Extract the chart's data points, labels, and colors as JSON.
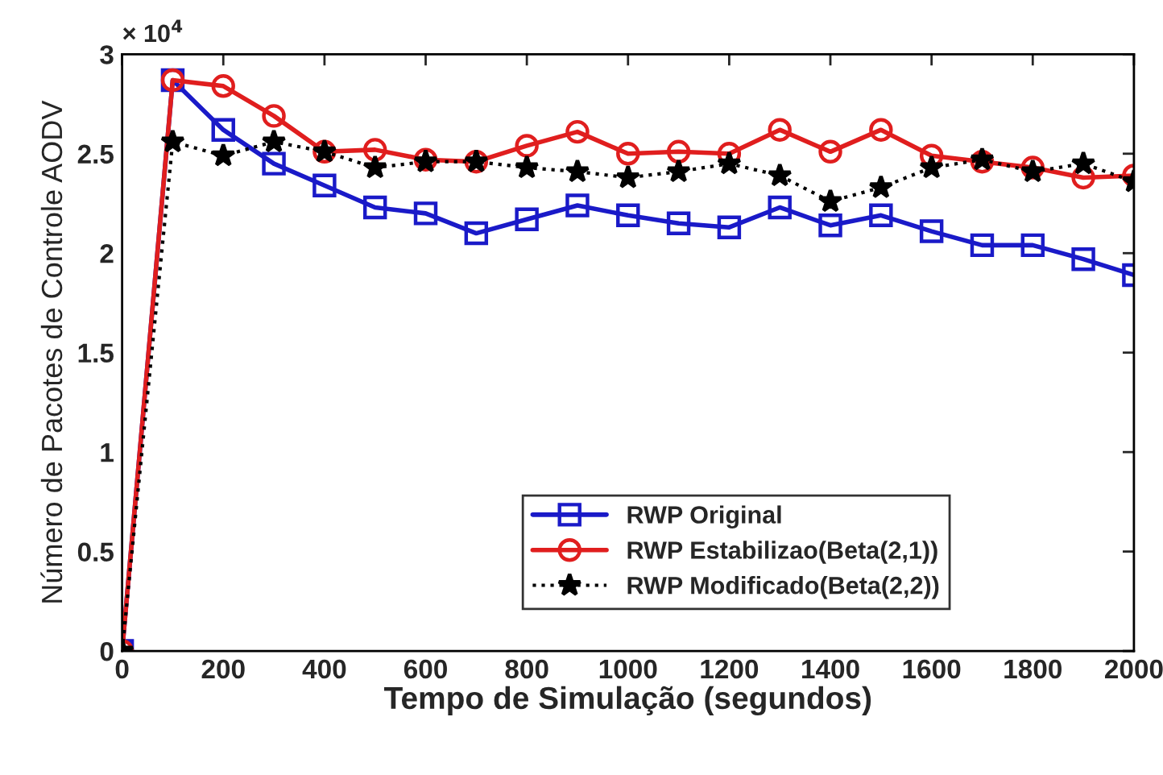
{
  "chart_data": {
    "type": "line",
    "xlabel": "Tempo de Simulação (segundos)",
    "ylabel": "Número de Pacotes de Controle AODV",
    "annotations": [
      "× 10$^{4}$"
    ],
    "x": [
      0,
      100,
      200,
      300,
      400,
      500,
      600,
      700,
      800,
      900,
      1000,
      1100,
      1200,
      1300,
      1400,
      1500,
      1600,
      1700,
      1800,
      1900,
      2000
    ],
    "xlim": [
      0,
      2000
    ],
    "xticks": [
      0,
      200,
      400,
      600,
      800,
      1000,
      1200,
      1400,
      1600,
      1800,
      2000
    ],
    "ylim": [
      0,
      3
    ],
    "yticks": [
      0,
      0.5,
      1,
      1.5,
      2,
      2.5,
      3
    ],
    "grid": false,
    "legend": "bottom right",
    "series": [
      {
        "name": "RWP Original",
        "color": "#1a1ac8",
        "marker": "square",
        "line_style": "solid",
        "values": [
          0,
          2.87,
          2.62,
          2.45,
          2.34,
          2.23,
          2.2,
          2.1,
          2.17,
          2.24,
          2.19,
          2.15,
          2.13,
          2.23,
          2.14,
          2.19,
          2.11,
          2.04,
          2.04,
          1.97,
          1.89
        ]
      },
      {
        "name": "RWP Estabilizao(Beta(2,1))",
        "color": "#e01e1e",
        "marker": "circle",
        "line_style": "solid",
        "values": [
          0,
          2.87,
          2.84,
          2.69,
          2.51,
          2.52,
          2.47,
          2.46,
          2.54,
          2.61,
          2.5,
          2.51,
          2.5,
          2.62,
          2.51,
          2.62,
          2.49,
          2.46,
          2.43,
          2.38,
          2.39
        ]
      },
      {
        "name": "RWP Modificado(Beta(2,2))",
        "color": "#000000",
        "marker": "star",
        "line_style": "dotted",
        "values": [
          0,
          2.56,
          2.49,
          2.56,
          2.51,
          2.43,
          2.46,
          2.46,
          2.43,
          2.41,
          2.38,
          2.41,
          2.45,
          2.39,
          2.26,
          2.33,
          2.43,
          2.47,
          2.41,
          2.45,
          2.36
        ]
      }
    ]
  }
}
